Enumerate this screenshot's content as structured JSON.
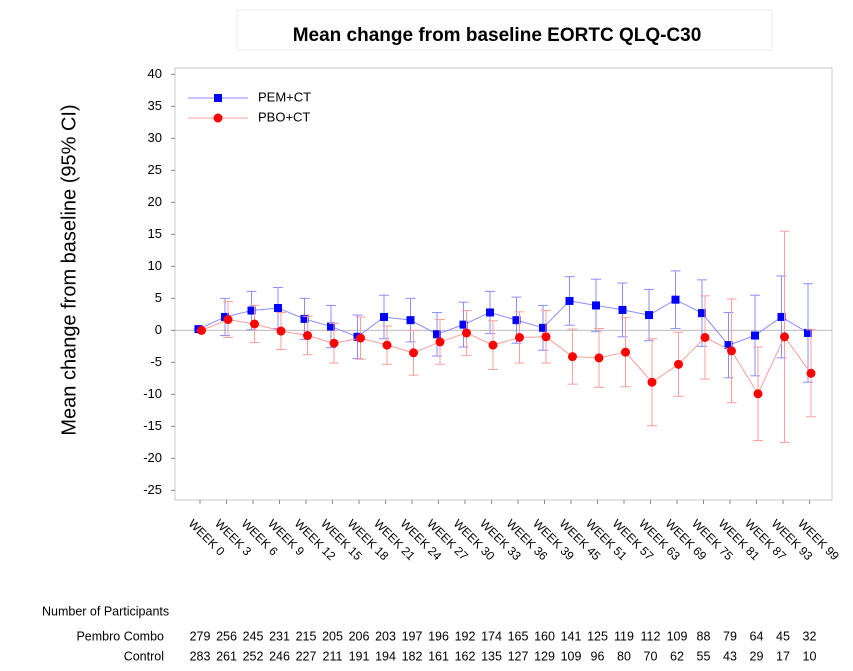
{
  "chart_data": {
    "type": "errorbar",
    "title": "Mean change from baseline EORTC QLQ-C30",
    "y_label": "Mean change from baseline (95% CI)",
    "categories": [
      "WEEK 0",
      "WEEK 3",
      "WEEK 6",
      "WEEK 9",
      "WEEK 12",
      "WEEK 15",
      "WEEK 18",
      "WEEK 21",
      "WEEK 24",
      "WEEK 27",
      "WEEK 30",
      "WEEK 33",
      "WEEK 36",
      "WEEK 39",
      "WEEK 45",
      "WEEK 51",
      "WEEK 57",
      "WEEK 63",
      "WEEK 69",
      "WEEK 75",
      "WEEK 81",
      "WEEK 87",
      "WEEK 93",
      "WEEK 99"
    ],
    "series": [
      {
        "name": "PEM+CT",
        "color": "#0000ff",
        "marker": "square",
        "values": [
          0.2,
          2.1,
          3.1,
          3.5,
          1.8,
          0.6,
          -1.0,
          2.1,
          1.6,
          -0.6,
          0.9,
          2.8,
          1.6,
          0.4,
          4.6,
          3.9,
          3.2,
          2.4,
          4.8,
          2.7,
          -2.3,
          -0.8,
          2.1,
          -0.4
        ],
        "errors": [
          0,
          2.9,
          3.0,
          3.2,
          3.2,
          3.3,
          3.4,
          3.4,
          3.4,
          3.4,
          3.5,
          3.3,
          3.6,
          3.5,
          3.8,
          4.1,
          4.2,
          4.0,
          4.5,
          5.2,
          5.1,
          6.3,
          6.4,
          7.7
        ]
      },
      {
        "name": "PBO+CT",
        "color": "#ff0000",
        "marker": "circle",
        "values": [
          0,
          1.7,
          1.0,
          -0.1,
          -0.8,
          -2.0,
          -1.2,
          -2.3,
          -3.5,
          -1.8,
          -0.4,
          -2.3,
          -1.1,
          -1.0,
          -4.1,
          -4.3,
          -3.4,
          -8.1,
          -5.3,
          -1.1,
          -3.2,
          -9.9,
          -1.0,
          -6.7
        ],
        "errors": [
          0,
          2.8,
          2.9,
          2.9,
          3.0,
          3.1,
          3.3,
          3.0,
          3.5,
          3.5,
          3.5,
          3.8,
          4.0,
          4.1,
          4.3,
          4.6,
          5.4,
          6.8,
          5.0,
          6.5,
          8.1,
          7.3,
          16.5,
          6.8
        ]
      }
    ],
    "ylim": [
      -26.5,
      41
    ],
    "yticks": [
      -25,
      -20,
      -15,
      -10,
      -5,
      0,
      5,
      10,
      15,
      20,
      25,
      30,
      35,
      40
    ],
    "legend": "top-left"
  },
  "participants": {
    "title": "Number of Participants",
    "rows": [
      {
        "label": "Pembro Combo",
        "values": [
          279,
          256,
          245,
          231,
          215,
          205,
          206,
          203,
          197,
          196,
          192,
          174,
          165,
          160,
          141,
          125,
          119,
          112,
          109,
          88,
          79,
          64,
          45,
          32
        ]
      },
      {
        "label": "Control",
        "values": [
          283,
          261,
          252,
          246,
          227,
          211,
          191,
          194,
          182,
          161,
          162,
          135,
          127,
          129,
          109,
          96,
          80,
          70,
          62,
          55,
          43,
          29,
          17,
          10
        ]
      }
    ]
  }
}
